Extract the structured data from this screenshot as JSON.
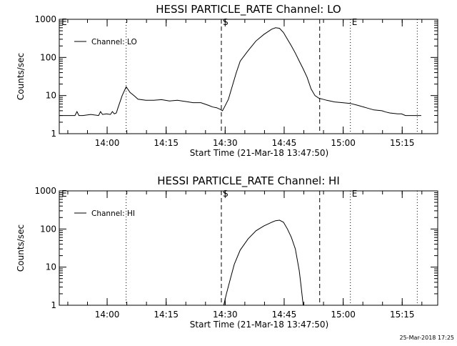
{
  "footer": {
    "timestamp": "25-Mar-2018 17:25"
  },
  "chart_data": [
    {
      "type": "line",
      "title": "HESSI PARTICLE_RATE Channel: LO",
      "xlabel": "Start Time (21-Mar-18 13:47:50)",
      "ylabel": "Counts/sec",
      "x_unit": "minutes since 13:47:50",
      "xlim": [
        0,
        96.2
      ],
      "ylim": [
        1,
        1000
      ],
      "yscale": "log",
      "x_ticks": [
        {
          "x": 12.17,
          "label": "14:00"
        },
        {
          "x": 27.17,
          "label": "14:15"
        },
        {
          "x": 42.17,
          "label": "14:30"
        },
        {
          "x": 57.17,
          "label": "14:45"
        },
        {
          "x": 72.17,
          "label": "15:00"
        },
        {
          "x": 87.17,
          "label": "15:15"
        }
      ],
      "y_ticks": [
        {
          "y": 1,
          "label": "1"
        },
        {
          "y": 10,
          "label": "10"
        },
        {
          "y": 100,
          "label": "100"
        },
        {
          "y": 1000,
          "label": "1000"
        }
      ],
      "legend": {
        "label": "Channel: LO",
        "position": "top-left"
      },
      "markers": [
        {
          "x": 17.0,
          "style": "dotted",
          "label": ""
        },
        {
          "x": 41.2,
          "style": "dashed",
          "label": "S"
        },
        {
          "x": 66.2,
          "style": "dashed",
          "label": ""
        },
        {
          "x": 74.0,
          "style": "dotted",
          "label": "E"
        },
        {
          "x": 91.0,
          "style": "dotted",
          "label": ""
        },
        {
          "x": 0.2,
          "style": "none",
          "label": "E"
        }
      ],
      "series": [
        {
          "name": "Channel: LO",
          "x": [
            0,
            2,
            4,
            4.5,
            5,
            6,
            8,
            10,
            10.5,
            11,
            12,
            13,
            13.5,
            14,
            14.5,
            15,
            16,
            17,
            18,
            19,
            20,
            22,
            24,
            26,
            28,
            30,
            32,
            34,
            36,
            38,
            39,
            40,
            41,
            41.5,
            42,
            43,
            44,
            45,
            46,
            48,
            50,
            52,
            54,
            55,
            56,
            57,
            58,
            59,
            60,
            61,
            62,
            63,
            64,
            65,
            66,
            67,
            68,
            70,
            72,
            74,
            76,
            78,
            80,
            82,
            83,
            84,
            86,
            87,
            88,
            90,
            92
          ],
          "y": [
            3.0,
            3.0,
            3.0,
            3.8,
            3.0,
            3.0,
            3.2,
            3.0,
            3.8,
            3.2,
            3.3,
            3.2,
            3.8,
            3.3,
            3.5,
            5,
            10,
            17,
            12,
            10,
            8,
            7.5,
            7.5,
            7.8,
            7.2,
            7.5,
            7.0,
            6.5,
            6.5,
            5.5,
            5.0,
            4.8,
            4.3,
            4.0,
            5,
            8,
            18,
            40,
            80,
            150,
            270,
            400,
            550,
            600,
            580,
            450,
            300,
            200,
            130,
            80,
            50,
            30,
            15,
            10,
            8.5,
            8.0,
            7.5,
            6.8,
            6.5,
            6.2,
            5.5,
            4.8,
            4.2,
            4.0,
            3.7,
            3.5,
            3.3,
            3.3,
            3.0,
            3.0,
            3.0
          ]
        }
      ]
    },
    {
      "type": "line",
      "title": "HESSI PARTICLE_RATE Channel: HI",
      "xlabel": "Start Time (21-Mar-18 13:47:50)",
      "ylabel": "Counts/sec",
      "x_unit": "minutes since 13:47:50",
      "xlim": [
        0,
        96.2
      ],
      "ylim": [
        1,
        1000
      ],
      "yscale": "log",
      "x_ticks": [
        {
          "x": 12.17,
          "label": "14:00"
        },
        {
          "x": 27.17,
          "label": "14:15"
        },
        {
          "x": 42.17,
          "label": "14:30"
        },
        {
          "x": 57.17,
          "label": "14:45"
        },
        {
          "x": 72.17,
          "label": "15:00"
        },
        {
          "x": 87.17,
          "label": "15:15"
        }
      ],
      "y_ticks": [
        {
          "y": 1,
          "label": "1"
        },
        {
          "y": 10,
          "label": "10"
        },
        {
          "y": 100,
          "label": "100"
        },
        {
          "y": 1000,
          "label": "1000"
        }
      ],
      "legend": {
        "label": "Channel: HI",
        "position": "top-left"
      },
      "markers": [
        {
          "x": 17.0,
          "style": "dotted",
          "label": ""
        },
        {
          "x": 41.2,
          "style": "dashed",
          "label": "S"
        },
        {
          "x": 66.2,
          "style": "dashed",
          "label": ""
        },
        {
          "x": 74.0,
          "style": "dotted",
          "label": "E"
        },
        {
          "x": 91.0,
          "style": "dotted",
          "label": ""
        },
        {
          "x": 0.2,
          "style": "none",
          "label": "E"
        }
      ],
      "series": [
        {
          "name": "Channel: HI",
          "x": [
            41.8,
            42.5,
            43.5,
            44.5,
            46,
            48,
            50,
            52,
            54,
            55,
            56,
            57,
            58,
            59,
            60,
            61,
            61.5,
            62
          ],
          "y": [
            1.0,
            2.0,
            5.0,
            12,
            28,
            55,
            90,
            120,
            150,
            165,
            170,
            150,
            100,
            60,
            30,
            8,
            3,
            1.0
          ]
        }
      ]
    }
  ]
}
